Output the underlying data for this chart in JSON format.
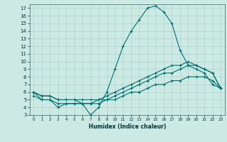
{
  "xlabel": "Humidex (Indice chaleur)",
  "ylabel": "",
  "xlim": [
    -0.5,
    23.5
  ],
  "ylim": [
    3,
    17.5
  ],
  "yticks": [
    3,
    4,
    5,
    6,
    7,
    8,
    9,
    10,
    11,
    12,
    13,
    14,
    15,
    16,
    17
  ],
  "xticks": [
    0,
    1,
    2,
    3,
    4,
    5,
    6,
    7,
    8,
    9,
    10,
    11,
    12,
    13,
    14,
    15,
    16,
    17,
    18,
    19,
    20,
    21,
    22,
    23
  ],
  "background_color": "#cce9e4",
  "grid_color": "#aad4ce",
  "line_color": "#007070",
  "series": [
    {
      "x": [
        0,
        1,
        2,
        3,
        4,
        5,
        6,
        7,
        8,
        9,
        10,
        11,
        12,
        13,
        14,
        15,
        16,
        17,
        18,
        19,
        20,
        21,
        22,
        23
      ],
      "y": [
        6,
        5,
        5,
        4,
        4.5,
        4.5,
        4.5,
        3,
        4,
        6,
        9,
        12,
        14,
        15.5,
        17,
        17.3,
        16.5,
        15,
        11.5,
        9.5,
        9,
        8.5,
        7,
        6.5
      ]
    },
    {
      "x": [
        0,
        1,
        2,
        3,
        4,
        5,
        6,
        7,
        8,
        9,
        10,
        11,
        12,
        13,
        14,
        15,
        16,
        17,
        18,
        19,
        20,
        21,
        22,
        23
      ],
      "y": [
        6,
        5.5,
        5.5,
        5,
        5,
        5,
        5,
        5,
        5,
        5.5,
        6,
        6.5,
        7,
        7.5,
        8,
        8.5,
        9,
        9.5,
        9.5,
        10,
        9.5,
        9,
        8.5,
        6.5
      ]
    },
    {
      "x": [
        0,
        1,
        2,
        3,
        4,
        5,
        6,
        7,
        8,
        9,
        10,
        11,
        12,
        13,
        14,
        15,
        16,
        17,
        18,
        19,
        20,
        21,
        22,
        23
      ],
      "y": [
        6,
        5.5,
        5.5,
        5,
        5,
        5,
        4.5,
        4.5,
        5,
        5,
        5.5,
        6,
        6.5,
        7,
        7.5,
        8,
        8.5,
        8.5,
        9,
        9.5,
        9.5,
        9,
        8.5,
        6.5
      ]
    },
    {
      "x": [
        0,
        1,
        2,
        3,
        4,
        5,
        6,
        7,
        8,
        9,
        10,
        11,
        12,
        13,
        14,
        15,
        16,
        17,
        18,
        19,
        20,
        21,
        22,
        23
      ],
      "y": [
        5.5,
        5,
        5,
        4.5,
        4.5,
        4.5,
        4.5,
        4.5,
        4.5,
        5,
        5,
        5.5,
        6,
        6,
        6.5,
        7,
        7,
        7.5,
        7.5,
        8,
        8,
        8,
        7.5,
        6.5
      ]
    }
  ]
}
